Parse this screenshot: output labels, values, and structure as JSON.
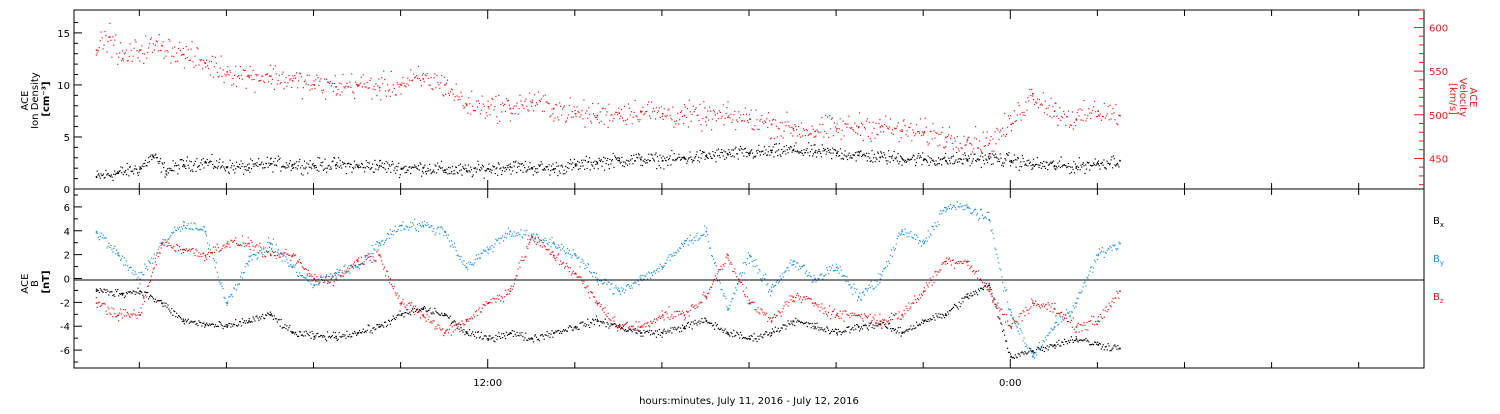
{
  "chart_data": [
    {
      "type": "scatter",
      "panel": "top",
      "xlabel": "hours:minutes, July 11, 2016 - July 12, 2016",
      "x_tick_labels": [
        {
          "hour": 12,
          "label": "12:00"
        },
        {
          "hour": 24,
          "label": "0:00"
        }
      ],
      "xlim_hours": [
        2.5,
        33.5
      ],
      "grid": false,
      "left_axis": {
        "label_lines": [
          "ACE",
          "Ion Density",
          "[cm⁻³]"
        ],
        "ylim": [
          0,
          17.2
        ],
        "ticks": [
          0,
          5,
          10,
          15
        ],
        "color": "#000000"
      },
      "right_axis": {
        "label_lines": [
          "ACE",
          "Velocity",
          "[km/s]"
        ],
        "ylim": [
          415,
          620
        ],
        "ticks": [
          450,
          500,
          550,
          600
        ],
        "color": "#e41a1c"
      },
      "series": [
        {
          "axis": "left",
          "color": "#000000",
          "points": [
            [
              3.0,
              1.2
            ],
            [
              3.5,
              1.6
            ],
            [
              4.0,
              2.0
            ],
            [
              4.3,
              3.2
            ],
            [
              4.6,
              1.8
            ],
            [
              5.0,
              2.4
            ],
            [
              5.5,
              2.6
            ],
            [
              6.0,
              2.2
            ],
            [
              6.5,
              2.1
            ],
            [
              7.0,
              2.5
            ],
            [
              7.5,
              2.4
            ],
            [
              8.0,
              2.3
            ],
            [
              8.5,
              2.4
            ],
            [
              9.0,
              2.2
            ],
            [
              9.5,
              2.3
            ],
            [
              10.0,
              2.0
            ],
            [
              10.5,
              2.1
            ],
            [
              11.0,
              1.9
            ],
            [
              11.5,
              1.8
            ],
            [
              12.0,
              2.0
            ],
            [
              12.5,
              2.2
            ],
            [
              13.0,
              2.1
            ],
            [
              13.5,
              2.0
            ],
            [
              14.0,
              2.3
            ],
            [
              14.5,
              2.6
            ],
            [
              15.0,
              2.8
            ],
            [
              15.5,
              2.9
            ],
            [
              16.0,
              2.8
            ],
            [
              16.5,
              3.0
            ],
            [
              17.0,
              3.2
            ],
            [
              17.5,
              3.4
            ],
            [
              18.0,
              3.5
            ],
            [
              18.5,
              3.6
            ],
            [
              19.0,
              3.8
            ],
            [
              19.5,
              3.6
            ],
            [
              20.0,
              3.5
            ],
            [
              20.5,
              3.3
            ],
            [
              21.0,
              3.1
            ],
            [
              21.5,
              3.0
            ],
            [
              22.0,
              2.9
            ],
            [
              22.5,
              2.8
            ],
            [
              23.0,
              2.9
            ],
            [
              23.5,
              3.0
            ],
            [
              24.0,
              2.8
            ],
            [
              24.5,
              2.4
            ],
            [
              25.0,
              2.3
            ],
            [
              25.5,
              2.2
            ],
            [
              26.0,
              2.5
            ],
            [
              26.5,
              2.8
            ]
          ],
          "spread": 1.0
        },
        {
          "axis": "right",
          "color": "#e41a1c",
          "points": [
            [
              3.0,
              575
            ],
            [
              3.3,
              590
            ],
            [
              3.6,
              565
            ],
            [
              4.0,
              575
            ],
            [
              4.5,
              580
            ],
            [
              5.0,
              570
            ],
            [
              5.5,
              560
            ],
            [
              6.0,
              550
            ],
            [
              6.5,
              545
            ],
            [
              7.0,
              545
            ],
            [
              7.5,
              540
            ],
            [
              8.0,
              535
            ],
            [
              8.5,
              533
            ],
            [
              9.0,
              535
            ],
            [
              9.5,
              532
            ],
            [
              10.0,
              535
            ],
            [
              10.5,
              542
            ],
            [
              11.0,
              535
            ],
            [
              11.5,
              512
            ],
            [
              12.0,
              510
            ],
            [
              12.5,
              508
            ],
            [
              13.0,
              515
            ],
            [
              13.5,
              508
            ],
            [
              14.0,
              502
            ],
            [
              14.5,
              500
            ],
            [
              15.0,
              503
            ],
            [
              15.5,
              505
            ],
            [
              16.0,
              502
            ],
            [
              16.5,
              500
            ],
            [
              17.0,
              498
            ],
            [
              17.5,
              498
            ],
            [
              18.0,
              496
            ],
            [
              18.5,
              490
            ],
            [
              19.0,
              485
            ],
            [
              19.5,
              482
            ],
            [
              20.0,
              485
            ],
            [
              20.5,
              487
            ],
            [
              21.0,
              487
            ],
            [
              21.5,
              482
            ],
            [
              22.0,
              480
            ],
            [
              22.5,
              475
            ],
            [
              23.0,
              472
            ],
            [
              23.5,
              468
            ],
            [
              24.0,
              490
            ],
            [
              24.5,
              525
            ],
            [
              25.0,
              505
            ],
            [
              25.5,
              495
            ],
            [
              26.0,
              505
            ],
            [
              26.5,
              500
            ]
          ],
          "spread": 22
        }
      ]
    },
    {
      "type": "scatter",
      "panel": "bottom",
      "xlabel": "hours:minutes, July 11, 2016 - July 12, 2016",
      "xlim_hours": [
        2.5,
        33.5
      ],
      "grid": false,
      "zero_line": true,
      "left_axis": {
        "label_lines": [
          "ACE",
          "B",
          "[nT]"
        ],
        "ylim": [
          -7.5,
          7.5
        ],
        "ticks": [
          -6,
          -4,
          -2,
          0,
          2,
          4,
          6
        ]
      },
      "legend_placement": "right",
      "series": [
        {
          "name_base": "B",
          "name_sub": "x",
          "color": "#000000",
          "points": [
            [
              3.0,
              -1.0
            ],
            [
              3.6,
              -1.2
            ],
            [
              4.0,
              -1.0
            ],
            [
              4.5,
              -2.0
            ],
            [
              5.0,
              -3.5
            ],
            [
              5.5,
              -3.8
            ],
            [
              6.0,
              -4.0
            ],
            [
              6.5,
              -3.5
            ],
            [
              7.0,
              -3.0
            ],
            [
              7.5,
              -4.5
            ],
            [
              8.0,
              -4.8
            ],
            [
              8.5,
              -4.8
            ],
            [
              9.0,
              -4.5
            ],
            [
              9.5,
              -4.0
            ],
            [
              10.0,
              -3.0
            ],
            [
              10.5,
              -2.5
            ],
            [
              11.0,
              -3.0
            ],
            [
              11.5,
              -4.5
            ],
            [
              12.0,
              -5.0
            ],
            [
              12.5,
              -4.5
            ],
            [
              13.0,
              -5.0
            ],
            [
              13.5,
              -4.5
            ],
            [
              14.0,
              -4.0
            ],
            [
              14.5,
              -3.5
            ],
            [
              15.0,
              -4.0
            ],
            [
              15.5,
              -4.5
            ],
            [
              16.0,
              -4.5
            ],
            [
              16.5,
              -4.0
            ],
            [
              17.0,
              -3.5
            ],
            [
              17.5,
              -4.5
            ],
            [
              18.0,
              -5.0
            ],
            [
              18.5,
              -4.5
            ],
            [
              19.0,
              -3.5
            ],
            [
              19.5,
              -4.0
            ],
            [
              20.0,
              -4.5
            ],
            [
              20.5,
              -4.0
            ],
            [
              21.0,
              -3.8
            ],
            [
              21.5,
              -4.5
            ],
            [
              22.0,
              -3.5
            ],
            [
              22.5,
              -3.0
            ],
            [
              23.0,
              -1.5
            ],
            [
              23.5,
              -0.5
            ],
            [
              24.0,
              -6.5
            ],
            [
              24.5,
              -6.0
            ],
            [
              25.0,
              -5.5
            ],
            [
              25.5,
              -5.0
            ],
            [
              26.0,
              -5.5
            ],
            [
              26.5,
              -5.8
            ]
          ],
          "spread": 0.5
        },
        {
          "name_base": "B",
          "name_sub": "y",
          "color": "#1f8fe0",
          "points": [
            [
              3.0,
              4.0
            ],
            [
              3.5,
              2.0
            ],
            [
              4.0,
              0.0
            ],
            [
              4.5,
              3.0
            ],
            [
              5.0,
              4.5
            ],
            [
              5.5,
              4.0
            ],
            [
              6.0,
              -2.0
            ],
            [
              6.5,
              1.5
            ],
            [
              7.0,
              3.0
            ],
            [
              7.5,
              1.0
            ],
            [
              8.0,
              -0.5
            ],
            [
              8.5,
              0.5
            ],
            [
              9.0,
              1.0
            ],
            [
              9.5,
              3.0
            ],
            [
              10.0,
              4.5
            ],
            [
              10.5,
              4.5
            ],
            [
              11.0,
              4.0
            ],
            [
              11.5,
              1.0
            ],
            [
              12.0,
              2.5
            ],
            [
              12.5,
              4.0
            ],
            [
              13.0,
              3.5
            ],
            [
              13.5,
              3.0
            ],
            [
              14.0,
              2.0
            ],
            [
              14.5,
              0.0
            ],
            [
              15.0,
              -1.0
            ],
            [
              15.5,
              0.0
            ],
            [
              16.0,
              1.0
            ],
            [
              16.5,
              3.0
            ],
            [
              17.0,
              4.0
            ],
            [
              17.5,
              -2.5
            ],
            [
              18.0,
              2.0
            ],
            [
              18.5,
              -1.0
            ],
            [
              19.0,
              1.5
            ],
            [
              19.5,
              0.0
            ],
            [
              20.0,
              1.0
            ],
            [
              20.5,
              -1.5
            ],
            [
              21.0,
              0.0
            ],
            [
              21.5,
              4.0
            ],
            [
              22.0,
              3.0
            ],
            [
              22.5,
              6.0
            ],
            [
              23.0,
              6.0
            ],
            [
              23.5,
              5.0
            ],
            [
              24.0,
              -3.0
            ],
            [
              24.5,
              -6.5
            ],
            [
              25.0,
              -4.0
            ],
            [
              25.5,
              -2.0
            ],
            [
              26.0,
              2.0
            ],
            [
              26.5,
              3.0
            ]
          ],
          "spread": 0.7
        },
        {
          "name_base": "B",
          "name_sub": "z",
          "color": "#e41a1c",
          "points": [
            [
              3.0,
              -2.0
            ],
            [
              3.5,
              -3.0
            ],
            [
              4.0,
              -3.0
            ],
            [
              4.5,
              3.0
            ],
            [
              5.0,
              2.5
            ],
            [
              5.5,
              2.0
            ],
            [
              6.0,
              3.0
            ],
            [
              6.5,
              3.0
            ],
            [
              7.0,
              2.0
            ],
            [
              7.5,
              2.0
            ],
            [
              8.0,
              0.0
            ],
            [
              8.5,
              0.0
            ],
            [
              9.0,
              1.5
            ],
            [
              9.5,
              2.0
            ],
            [
              10.0,
              -2.0
            ],
            [
              10.5,
              -3.0
            ],
            [
              11.0,
              -4.5
            ],
            [
              11.5,
              -3.5
            ],
            [
              12.0,
              -2.0
            ],
            [
              12.5,
              -1.0
            ],
            [
              13.0,
              3.5
            ],
            [
              13.5,
              2.0
            ],
            [
              14.0,
              0.5
            ],
            [
              14.5,
              -2.0
            ],
            [
              15.0,
              -4.0
            ],
            [
              15.5,
              -4.0
            ],
            [
              16.0,
              -3.0
            ],
            [
              16.5,
              -3.0
            ],
            [
              17.0,
              -1.5
            ],
            [
              17.5,
              2.0
            ],
            [
              18.0,
              -2.0
            ],
            [
              18.5,
              -3.5
            ],
            [
              19.0,
              -1.5
            ],
            [
              19.5,
              -2.0
            ],
            [
              20.0,
              -3.0
            ],
            [
              20.5,
              -3.0
            ],
            [
              21.0,
              -3.5
            ],
            [
              21.5,
              -3.0
            ],
            [
              22.0,
              -1.0
            ],
            [
              22.5,
              1.5
            ],
            [
              23.0,
              1.5
            ],
            [
              23.5,
              -1.0
            ],
            [
              24.0,
              -4.0
            ],
            [
              24.5,
              -2.0
            ],
            [
              25.0,
              -2.5
            ],
            [
              25.5,
              -4.0
            ],
            [
              26.0,
              -3.5
            ],
            [
              26.5,
              -1.0
            ]
          ],
          "spread": 0.7
        }
      ]
    }
  ]
}
